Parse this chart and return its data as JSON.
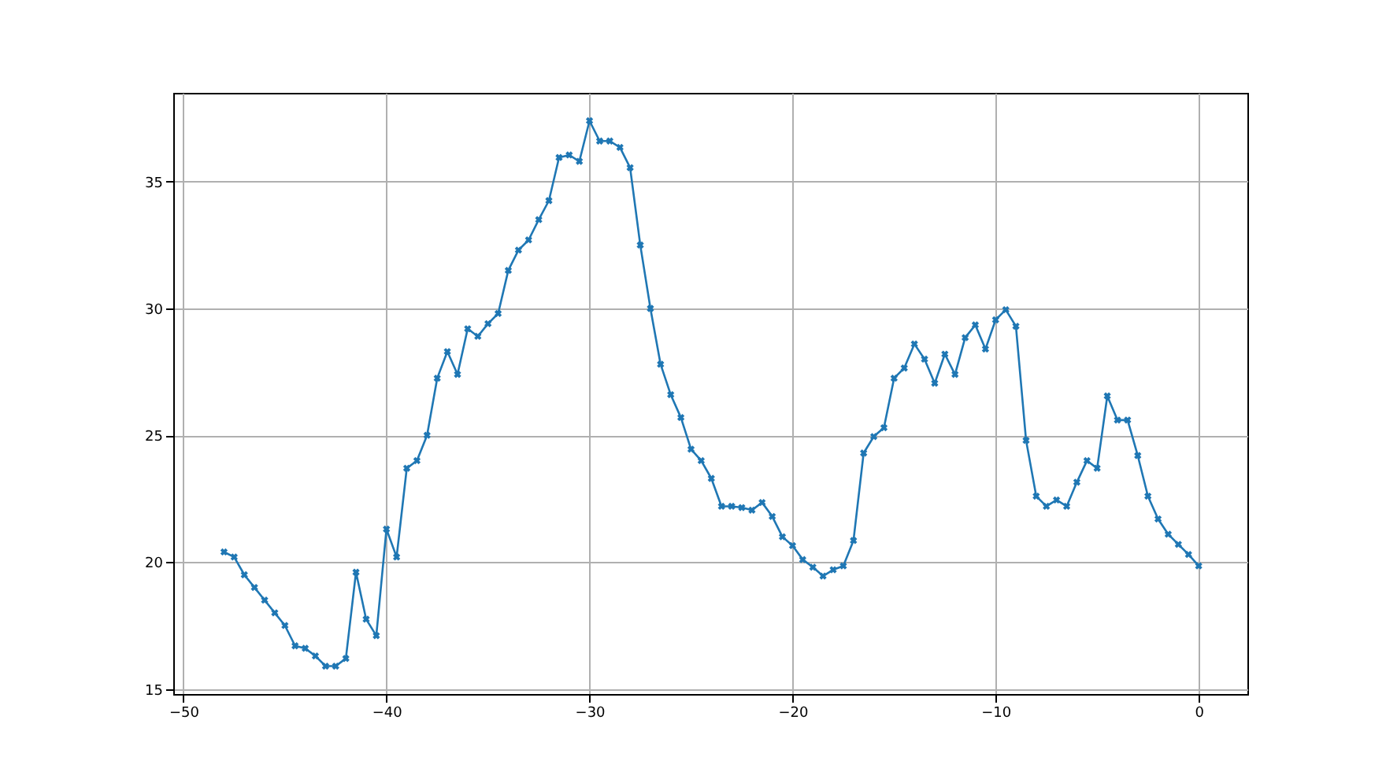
{
  "chart_data": {
    "type": "line",
    "x": [
      -48,
      -47.5,
      -47,
      -46.5,
      -46,
      -45.5,
      -45,
      -44.5,
      -44,
      -43.5,
      -43,
      -42.5,
      -42,
      -41.5,
      -41,
      -40.5,
      -40,
      -39.5,
      -39,
      -38.5,
      -38,
      -37.5,
      -37,
      -36.5,
      -36,
      -35.5,
      -35,
      -34.5,
      -34,
      -33.5,
      -33,
      -32.5,
      -32,
      -31.5,
      -31,
      -30.5,
      -30,
      -29.5,
      -29,
      -28.5,
      -28,
      -27.5,
      -27,
      -26.5,
      -26,
      -25.5,
      -25,
      -24.5,
      -24,
      -23.5,
      -23,
      -22.5,
      -22,
      -21.5,
      -21,
      -20.5,
      -20,
      -19.5,
      -19,
      -18.5,
      -18,
      -17.5,
      -17,
      -16.5,
      -16,
      -15.5,
      -15,
      -14.5,
      -14,
      -13.5,
      -13,
      -12.5,
      -12,
      -11.5,
      -11,
      -10.5,
      -10,
      -9.5,
      -9,
      -8.5,
      -8,
      -7.5,
      -7,
      -6.5,
      -6,
      -5.5,
      -5,
      -4.5,
      -4,
      -3.5,
      -3,
      -2.5,
      -2,
      -1.5,
      -1,
      -0.5,
      0
    ],
    "series": [
      {
        "color": "#1f77b4",
        "values": [
          20.4,
          20.2,
          19.5,
          19.0,
          18.5,
          18.0,
          17.5,
          16.7,
          16.6,
          16.3,
          15.9,
          15.9,
          16.2,
          19.6,
          17.75,
          17.1,
          21.3,
          20.2,
          23.7,
          24.0,
          25.0,
          27.25,
          28.3,
          27.4,
          29.2,
          28.9,
          29.4,
          29.8,
          31.5,
          32.3,
          32.7,
          33.5,
          34.25,
          35.95,
          36.05,
          35.8,
          37.4,
          36.6,
          36.6,
          36.35,
          35.55,
          32.5,
          30.0,
          27.8,
          26.6,
          25.7,
          24.45,
          24.0,
          23.3,
          22.2,
          22.2,
          22.15,
          22.05,
          22.35,
          21.8,
          21.0,
          20.65,
          20.1,
          19.8,
          19.45,
          19.7,
          19.85,
          20.85,
          24.3,
          24.95,
          25.3,
          27.25,
          27.65,
          28.6,
          28.0,
          27.05,
          28.2,
          27.4,
          28.85,
          29.35,
          28.4,
          29.55,
          29.95,
          29.3,
          24.8,
          22.6,
          22.2,
          22.45,
          22.2,
          23.15,
          24.0,
          23.7,
          26.55,
          25.6,
          25.6,
          24.2,
          22.6,
          21.7,
          21.1,
          20.7,
          20.3,
          19.85
        ]
      }
    ],
    "xlim": [
      -50.5,
      2.4
    ],
    "ylim": [
      14.8,
      38.5
    ],
    "xticks": [
      -50,
      -40,
      -30,
      -20,
      -10,
      0
    ],
    "yticks": [
      15,
      20,
      25,
      30,
      35
    ],
    "grid": true,
    "marker": "cross",
    "line_style": "solid"
  }
}
